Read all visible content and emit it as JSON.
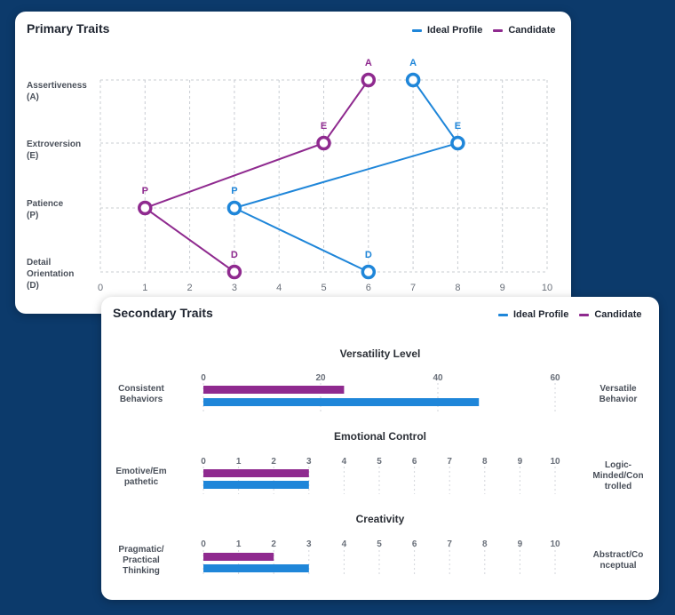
{
  "colors": {
    "ideal": "#1f86d9",
    "candidate": "#8f2a8f",
    "background": "#0c3a6b"
  },
  "legend": {
    "ideal": "Ideal Profile",
    "candidate": "Candidate"
  },
  "primary": {
    "title": "Primary Traits",
    "chart_data": {
      "type": "line",
      "title": "Primary Traits",
      "xlim": [
        0,
        10
      ],
      "x_ticks": [
        "0",
        "1",
        "2",
        "3",
        "4",
        "5",
        "6",
        "7",
        "8",
        "9",
        "10"
      ],
      "categories": [
        {
          "line1": "Assertiveness",
          "line2": "(A)"
        },
        {
          "line1": "Extroversion",
          "line2": "(E)"
        },
        {
          "line1": "Patience",
          "line2": "(P)"
        },
        {
          "line1": "Detail",
          "line2": "Orientation",
          "line3": "(D)"
        }
      ],
      "series": [
        {
          "name": "Ideal Profile",
          "points": [
            {
              "label": "A",
              "x": 7
            },
            {
              "label": "E",
              "x": 8
            },
            {
              "label": "P",
              "x": 3
            },
            {
              "label": "D",
              "x": 6
            }
          ]
        },
        {
          "name": "Candidate",
          "points": [
            {
              "label": "A",
              "x": 6
            },
            {
              "label": "E",
              "x": 5
            },
            {
              "label": "P",
              "x": 1
            },
            {
              "label": "D",
              "x": 3
            }
          ]
        }
      ],
      "grid": true,
      "legend": "top-right"
    }
  },
  "secondary": {
    "title": "Secondary Traits",
    "chart_data": [
      {
        "type": "bar",
        "title": "Versatility Level",
        "left_label": "Consistent Behaviors",
        "right_label": "Versatile Behavior",
        "xlim": [
          0,
          60
        ],
        "ticks": [
          "0",
          "20",
          "40",
          "60"
        ],
        "series": [
          {
            "name": "Candidate",
            "value": 24
          },
          {
            "name": "Ideal Profile",
            "value": 47
          }
        ]
      },
      {
        "type": "bar",
        "title": "Emotional Control",
        "left_label": "Emotive/Em pathetic",
        "right_label": "Logic-Minded/Con trolled",
        "xlim": [
          0,
          10
        ],
        "ticks": [
          "0",
          "1",
          "2",
          "3",
          "4",
          "5",
          "6",
          "7",
          "8",
          "9",
          "10"
        ],
        "series": [
          {
            "name": "Candidate",
            "value": 3
          },
          {
            "name": "Ideal Profile",
            "value": 3
          }
        ]
      },
      {
        "type": "bar",
        "title": "Creativity",
        "left_label": "Pragmatic/ Practical Thinking",
        "right_label": "Abstract/Co nceptual",
        "xlim": [
          0,
          10
        ],
        "ticks": [
          "0",
          "1",
          "2",
          "3",
          "4",
          "5",
          "6",
          "7",
          "8",
          "9",
          "10"
        ],
        "series": [
          {
            "name": "Candidate",
            "value": 2
          },
          {
            "name": "Ideal Profile",
            "value": 3
          }
        ]
      }
    ]
  }
}
